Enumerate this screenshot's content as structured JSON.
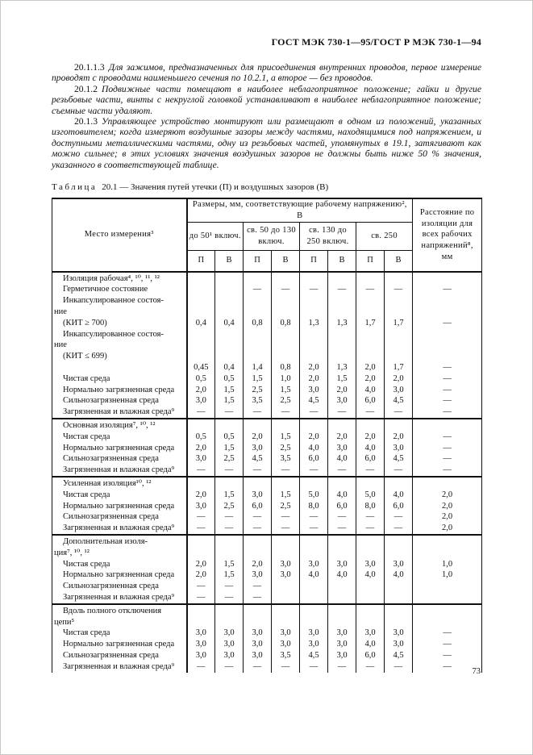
{
  "page": {
    "header_title": "ГОСТ МЭК 730-1—95/ГОСТ Р МЭК 730-1—94",
    "page_number": "73"
  },
  "paragraphs": [
    {
      "number": "20.1.1.3",
      "text": "Для зажимов, предназначенных для присоединения внутренних проводов, первое измерение проводят с проводами наименьшего сечения по 10.2.1, а второе — без проводов."
    },
    {
      "number": "20.1.2",
      "text": "Подвижные части помещают в наиболее неблагоприятное положение; гайки и другие резьбовые части, винты с некруглой головкой устанавливают в наиболее неблагоприятное положение; съемные части удаляют."
    },
    {
      "number": "20.1.3",
      "text": "Управляющее устройство монтируют или размещают в одном из положений, указанных изготовителем; когда измеряют воздушные зазоры между частями, находящимися под напряжением, и доступными металлическими частями, одну из резьбовых частей, упомянутых в 19.1, затягивают как можно сильнее; в этих условиях значения воздушных зазоров не должны быть ниже 50 % значения, указанного в соответствующей таблице."
    }
  ],
  "table": {
    "title_label": "Таблица",
    "title_rest": "20.1 — Значения путей утечки (П) и воздушных зазоров (В)",
    "header": {
      "place": "Место измерения³",
      "sizes": "Размеры, мм, соответствующие рабочему напряжению², В",
      "voltage_groups": [
        "до 50¹ включ.",
        "св. 50 до 130 включ.",
        "св. 130 до 250 включ.",
        "св. 250"
      ],
      "pv": [
        "П",
        "В"
      ],
      "distance": "Расстояние по изоляции для всех рабочих напряжений⁸, мм"
    },
    "sections": [
      {
        "header": "Изоляция рабочая⁴, ¹⁰, ¹¹, ¹²",
        "rows": [
          {
            "label": "Герметичное состояние",
            "values": [
              "",
              "",
              "—",
              "—",
              "—",
              "—",
              "—",
              "—",
              "—"
            ]
          },
          {
            "label": "Инкапсулированное состоя-\nние",
            "values": [
              "",
              "",
              "",
              "",
              "",
              "",
              "",
              "",
              ""
            ]
          },
          {
            "label": "(КИТ ≥ 700)",
            "values": [
              "0,4",
              "0,4",
              "0,8",
              "0,8",
              "1,3",
              "1,3",
              "1,7",
              "1,7",
              "—"
            ]
          },
          {
            "label": "Инкапсулированное состоя-\nние",
            "values": [
              "",
              "",
              "",
              "",
              "",
              "",
              "",
              "",
              ""
            ]
          },
          {
            "label": "(КИТ ≤ 699)",
            "values": [
              "",
              "",
              "",
              "",
              "",
              "",
              "",
              "",
              ""
            ]
          },
          {
            "label": "",
            "values": [
              "0,45",
              "0,4",
              "1,4",
              "0,8",
              "2,0",
              "1,3",
              "2,0",
              "1,7",
              "—"
            ]
          },
          {
            "label": "Чистая среда",
            "values": [
              "0,5",
              "0,5",
              "1,5",
              "1,0",
              "2,0",
              "1,5",
              "2,0",
              "2,0",
              "—"
            ]
          },
          {
            "label": "Нормально загрязненная среда",
            "values": [
              "2,0",
              "1,5",
              "2,5",
              "1,5",
              "3,0",
              "2,0",
              "4,0",
              "3,0",
              "—"
            ]
          },
          {
            "label": "Сильнозагрязненная среда",
            "values": [
              "3,0",
              "1,5",
              "3,5",
              "2,5",
              "4,5",
              "3,0",
              "6,0",
              "4,5",
              "—"
            ]
          },
          {
            "label": "Загрязненная и влажная среда⁹",
            "values": [
              "—",
              "—",
              "—",
              "—",
              "—",
              "—",
              "—",
              "—",
              "—"
            ]
          }
        ]
      },
      {
        "header": "Основная изоляция⁷, ¹⁰, ¹²",
        "rows": [
          {
            "label": "Чистая среда",
            "values": [
              "0,5",
              "0,5",
              "2,0",
              "1,5",
              "2,0",
              "2,0",
              "2,0",
              "2,0",
              "—"
            ]
          },
          {
            "label": "Нормально загрязненная среда",
            "values": [
              "2,0",
              "1,5",
              "3,0",
              "2,5",
              "4,0",
              "3,0",
              "4,0",
              "3,0",
              "—"
            ]
          },
          {
            "label": "Сильнозагрязненная среда",
            "values": [
              "3,0",
              "2,5",
              "4,5",
              "3,5",
              "6,0",
              "4,0",
              "6,0",
              "4,5",
              "—"
            ]
          },
          {
            "label": "Загрязненная и влажная среда⁹",
            "values": [
              "—",
              "—",
              "—",
              "—",
              "—",
              "—",
              "—",
              "—",
              "—"
            ]
          }
        ]
      },
      {
        "header": "Усиленная изоляция¹⁰, ¹²",
        "rows": [
          {
            "label": "Чистая среда",
            "values": [
              "2,0",
              "1,5",
              "3,0",
              "1,5",
              "5,0",
              "4,0",
              "5,0",
              "4,0",
              "2,0"
            ]
          },
          {
            "label": "Нормально загрязненная среда",
            "values": [
              "3,0",
              "2,5",
              "6,0",
              "2,5",
              "8,0",
              "6,0",
              "8,0",
              "6,0",
              "2,0"
            ]
          },
          {
            "label": "Сильнозагрязненная среда",
            "values": [
              "—",
              "—",
              "—",
              "—",
              "—",
              "—",
              "—",
              "—",
              "2,0"
            ]
          },
          {
            "label": "Загрязненная и влажная среда⁹",
            "values": [
              "—",
              "—",
              "—",
              "—",
              "—",
              "—",
              "—",
              "—",
              "2,0"
            ]
          }
        ]
      },
      {
        "header": "Дополнительная изоля-\nция⁷, ¹⁰, ¹²",
        "rows": [
          {
            "label": "Чистая среда",
            "values": [
              "2,0",
              "1,5",
              "2,0",
              "3,0",
              "3,0",
              "3,0",
              "3,0",
              "3,0",
              "1,0"
            ]
          },
          {
            "label": "Нормально загрязненная среда",
            "values": [
              "2,0",
              "1,5",
              "3,0",
              "3,0",
              "4,0",
              "4,0",
              "4,0",
              "4,0",
              "1,0"
            ]
          },
          {
            "label": "Сильнозагрязненная среда",
            "values": [
              "—",
              "—",
              "—",
              "",
              "",
              "",
              "",
              "",
              ""
            ]
          },
          {
            "label": "Загрязненная и влажная среда⁹",
            "values": [
              "—",
              "—",
              "—",
              "",
              "",
              "",
              "",
              "",
              ""
            ]
          }
        ]
      },
      {
        "header": "Вдоль полного отключения\nцепи⁵",
        "rows": [
          {
            "label": "Чистая среда",
            "values": [
              "3,0",
              "3,0",
              "3,0",
              "3,0",
              "3,0",
              "3,0",
              "3,0",
              "3,0",
              "—"
            ]
          },
          {
            "label": "Нормально загрязненная среда",
            "values": [
              "3,0",
              "3,0",
              "3,0",
              "3,0",
              "3,0",
              "3,0",
              "4,0",
              "3,0",
              "—"
            ]
          },
          {
            "label": "Сильнозагрязненная среда",
            "values": [
              "3,0",
              "3,0",
              "3,0",
              "3,5",
              "4,5",
              "3,0",
              "6,0",
              "4,5",
              "—"
            ]
          },
          {
            "label": "Загрязненная и влажная среда⁹",
            "values": [
              "—",
              "—",
              "—",
              "—",
              "—",
              "—",
              "—",
              "—",
              "—"
            ]
          }
        ]
      }
    ]
  }
}
